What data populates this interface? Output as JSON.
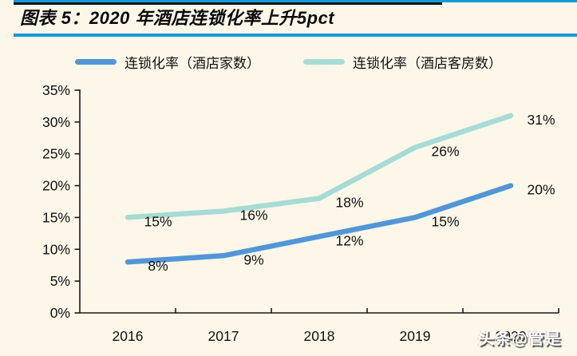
{
  "header": {
    "title": "图表 5：2020 年酒店连锁化率上升5pct"
  },
  "legend": [
    {
      "label": "连锁化率（酒店家数）",
      "color": "#5296d7"
    },
    {
      "label": "连锁化率（酒店客房数）",
      "color": "#a6dbd6"
    }
  ],
  "chart_data": {
    "type": "line",
    "title": "2020 年酒店连锁化率上升5pct",
    "categories": [
      "2016",
      "2017",
      "2018",
      "2019",
      "2020"
    ],
    "series": [
      {
        "name": "连锁化率（酒店家数）",
        "color": "#5296d7",
        "values": [
          8,
          9,
          12,
          15,
          20
        ]
      },
      {
        "name": "连锁化率（酒店客房数）",
        "color": "#a6dbd6",
        "values": [
          15,
          16,
          18,
          26,
          31
        ]
      }
    ],
    "xlabel": "",
    "ylabel": "",
    "ylim": [
      0,
      35
    ],
    "ytick_step": 5,
    "ytick_labels": [
      "0%",
      "5%",
      "10%",
      "15%",
      "20%",
      "25%",
      "30%",
      "35%"
    ],
    "data_label_suffix": "%",
    "grid": false,
    "legend_position": "top"
  },
  "watermark": {
    "text": "头条@管是"
  },
  "colors": {
    "background": "#fcf7e8",
    "axis": "#1a1a1a",
    "text": "#111111",
    "top_rule_blue": "#1799d6",
    "top_rule_black": "#141414",
    "title_underline": "#1799d6"
  }
}
